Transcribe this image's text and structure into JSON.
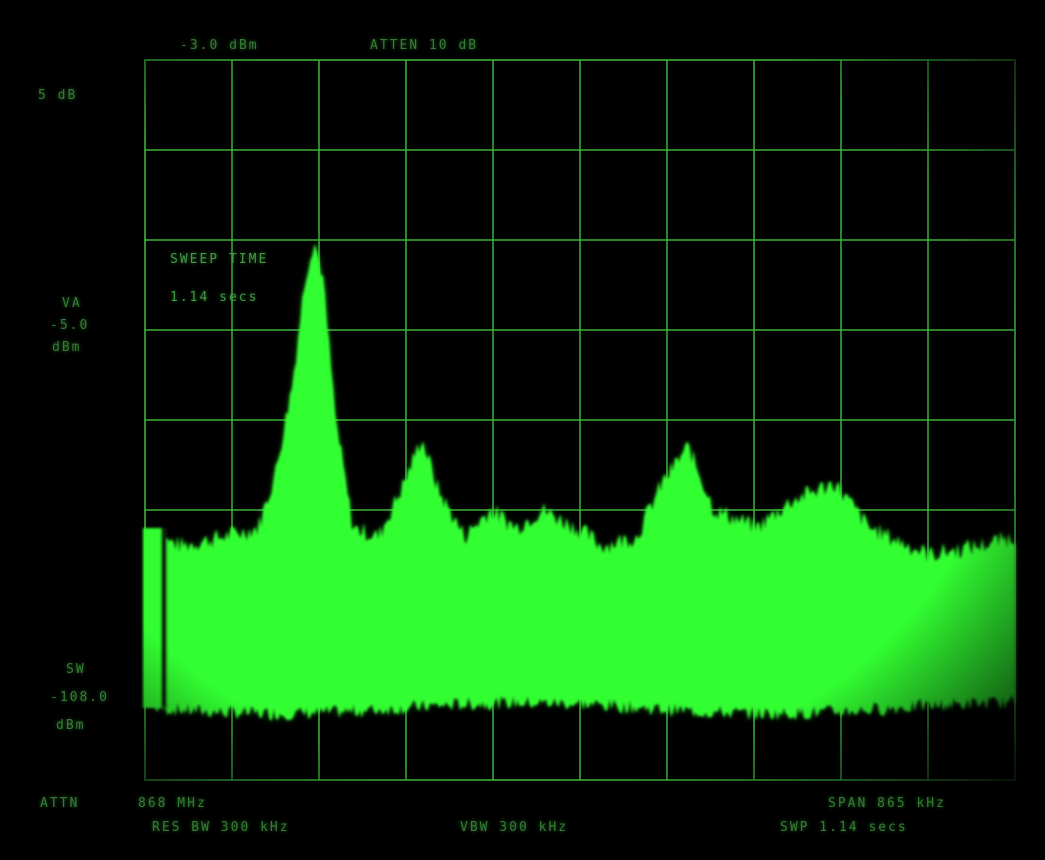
{
  "header": {
    "ref_level": "-3.0 dBm",
    "attenuation": "ATTEN 10 dB"
  },
  "left_scale": {
    "top": "5 dB",
    "mid_label_1": "VA",
    "mid_label_2": "-5.0",
    "mid_label_3": "dBm",
    "low_label_1": "SW",
    "low_label_2": "-108.0",
    "low_label_3": "dBm"
  },
  "marker_box": {
    "line1": "SWEEP TIME",
    "line2": "1.14 secs"
  },
  "footer": {
    "left_corner": "ATTN",
    "center_freq": "868 MHz",
    "res_bw": "RES BW 300 kHz",
    "vid_bw": "VBW 300 kHz",
    "span": "SPAN 865 kHz",
    "sweep": "SWP 1.14 secs"
  },
  "colors": {
    "trace": "#33ff33",
    "grid": "#3fbf3f",
    "background": "#000000"
  },
  "chart_data": {
    "type": "area",
    "grid_divisions": {
      "x": 10,
      "y": 8
    },
    "ylim": [
      -80,
      0
    ],
    "trace_points_db": [
      [
        0.0,
        -53
      ],
      [
        0.03,
        -54
      ],
      [
        0.08,
        -53
      ],
      [
        0.12,
        -52
      ],
      [
        0.14,
        -46
      ],
      [
        0.16,
        -36
      ],
      [
        0.175,
        -24
      ],
      [
        0.185,
        -20
      ],
      [
        0.195,
        -24
      ],
      [
        0.21,
        -40
      ],
      [
        0.23,
        -52
      ],
      [
        0.26,
        -53
      ],
      [
        0.29,
        -47
      ],
      [
        0.31,
        -42
      ],
      [
        0.33,
        -48
      ],
      [
        0.36,
        -53
      ],
      [
        0.39,
        -50
      ],
      [
        0.42,
        -52
      ],
      [
        0.45,
        -50
      ],
      [
        0.49,
        -52
      ],
      [
        0.52,
        -54
      ],
      [
        0.56,
        -53
      ],
      [
        0.59,
        -47
      ],
      [
        0.62,
        -43
      ],
      [
        0.65,
        -50
      ],
      [
        0.7,
        -52
      ],
      [
        0.74,
        -49
      ],
      [
        0.79,
        -47
      ],
      [
        0.83,
        -52
      ],
      [
        0.9,
        -55
      ],
      [
        0.96,
        -54
      ],
      [
        1.0,
        -53
      ]
    ],
    "noise_floor_db": -72
  }
}
